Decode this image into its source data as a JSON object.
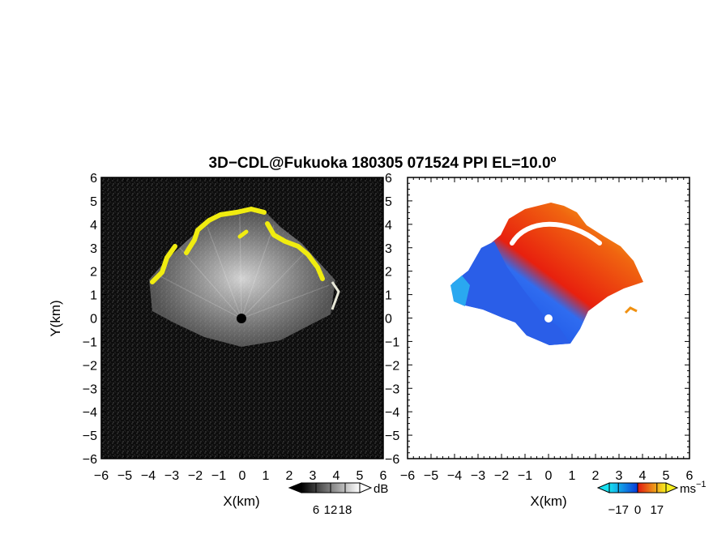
{
  "title": "3D−CDL@Fukuoka 180305 071524 PPI EL=10.0º",
  "chart_data": [
    {
      "panel": "reflectivity",
      "type": "heatmap",
      "xlabel": "X(km)",
      "ylabel": "Y(km)",
      "xlim": [
        -6,
        6
      ],
      "ylim": [
        -6,
        6
      ],
      "xticks": [
        "−6",
        "−5",
        "−4",
        "−3",
        "−2",
        "−1",
        "0",
        "1",
        "2",
        "3",
        "4",
        "5",
        "6"
      ],
      "yticks": [
        "6",
        "5",
        "4",
        "3",
        "2",
        "1",
        "0",
        "−1",
        "−2",
        "−3",
        "−4",
        "−5",
        "−6"
      ],
      "background": "#101010",
      "colorbar": {
        "unit": "dB",
        "ticks": [
          "6",
          "12",
          "18"
        ],
        "range": [
          0,
          24
        ],
        "colors": [
          "#000000",
          "#ffffff"
        ]
      },
      "echo_boundary_color": "#f0ec10",
      "radar_center": [
        0,
        0
      ]
    },
    {
      "panel": "doppler_velocity",
      "type": "heatmap",
      "xlabel": "X(km)",
      "xlim": [
        -6,
        6
      ],
      "ylim": [
        -6,
        6
      ],
      "xticks": [
        "−6",
        "−5",
        "−4",
        "−3",
        "−2",
        "−1",
        "0",
        "1",
        "2",
        "3",
        "4",
        "5",
        "6"
      ],
      "yticks": [
        "6",
        "5",
        "4",
        "3",
        "2",
        "1",
        "0",
        "−1",
        "−2",
        "−3",
        "−4",
        "−5",
        "−6"
      ],
      "background": "#ffffff",
      "colorbar": {
        "unit": "ms",
        "unit_exponent": "−1",
        "ticks": [
          "−17",
          "0",
          "17"
        ],
        "range": [
          -25,
          25
        ],
        "colors": [
          "#18e0f0",
          "#0a3ad8",
          "#e01810",
          "#f8f020"
        ]
      },
      "radar_center": [
        0,
        0
      ]
    }
  ]
}
